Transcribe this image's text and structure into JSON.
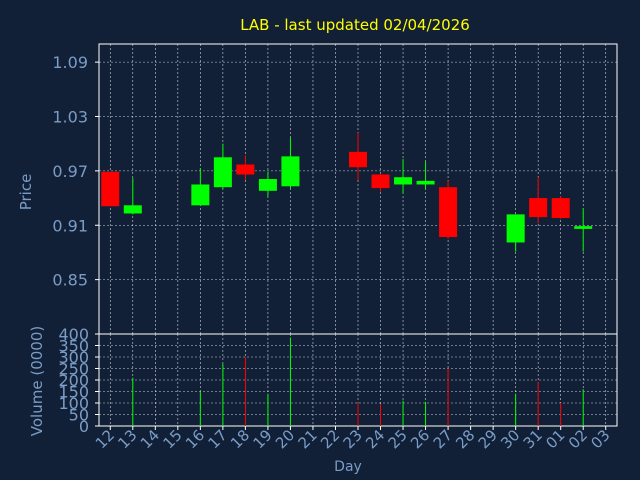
{
  "chart_data": {
    "type": "candlestick",
    "title": "LAB - last updated 02/04/2026",
    "xlabel": "Day",
    "price_panel": {
      "ylabel": "Price",
      "ylim": [
        0.79,
        1.11
      ],
      "yticks": [
        "0.85",
        "0.91",
        "0.97",
        "1.03",
        "1.09"
      ],
      "ytick_values": [
        0.85,
        0.91,
        0.97,
        1.03,
        1.09
      ],
      "grid": true
    },
    "volume_panel": {
      "ylabel": "Volume (0000)",
      "ylim": [
        0,
        400
      ],
      "yticks": [
        "0",
        "50",
        "100",
        "150",
        "200",
        "250",
        "300",
        "350",
        "400"
      ],
      "ytick_values": [
        0,
        50,
        100,
        150,
        200,
        250,
        300,
        350,
        400
      ],
      "grid": true
    },
    "x_ticks": [
      "12",
      "13",
      "14",
      "15",
      "16",
      "17",
      "18",
      "19",
      "20",
      "21",
      "22",
      "23",
      "24",
      "25",
      "26",
      "27",
      "28",
      "29",
      "30",
      "31",
      "01",
      "02",
      "03"
    ],
    "candles": [
      {
        "day": "12",
        "open": 0.969,
        "high": 0.969,
        "low": 0.931,
        "close": 0.931,
        "volume": 0
      },
      {
        "day": "13",
        "open": 0.923,
        "high": 0.962,
        "low": 0.922,
        "close": 0.932,
        "volume": 210
      },
      {
        "day": "16",
        "open": 0.932,
        "high": 0.973,
        "low": 0.932,
        "close": 0.955,
        "volume": 150
      },
      {
        "day": "17",
        "open": 0.952,
        "high": 1.0,
        "low": 0.95,
        "close": 0.985,
        "volume": 270
      },
      {
        "day": "18",
        "open": 0.977,
        "high": 0.987,
        "low": 0.96,
        "close": 0.966,
        "volume": 300
      },
      {
        "day": "19",
        "open": 0.948,
        "high": 0.969,
        "low": 0.942,
        "close": 0.961,
        "volume": 140
      },
      {
        "day": "20",
        "open": 0.953,
        "high": 1.007,
        "low": 0.951,
        "close": 0.986,
        "volume": 385
      },
      {
        "day": "23",
        "open": 0.991,
        "high": 1.012,
        "low": 0.96,
        "close": 0.974,
        "volume": 100
      },
      {
        "day": "24",
        "open": 0.966,
        "high": 0.967,
        "low": 0.947,
        "close": 0.951,
        "volume": 95
      },
      {
        "day": "25",
        "open": 0.955,
        "high": 0.983,
        "low": 0.945,
        "close": 0.963,
        "volume": 110
      },
      {
        "day": "26",
        "open": 0.955,
        "high": 0.98,
        "low": 0.95,
        "close": 0.959,
        "volume": 105
      },
      {
        "day": "27",
        "open": 0.952,
        "high": 0.959,
        "low": 0.895,
        "close": 0.897,
        "volume": 250
      },
      {
        "day": "30",
        "open": 0.891,
        "high": 0.922,
        "low": 0.881,
        "close": 0.922,
        "volume": 140
      },
      {
        "day": "31",
        "open": 0.94,
        "high": 0.963,
        "low": 0.912,
        "close": 0.919,
        "volume": 190
      },
      {
        "day": "01",
        "open": 0.94,
        "high": 0.942,
        "low": 0.917,
        "close": 0.918,
        "volume": 100
      },
      {
        "day": "02",
        "open": 0.906,
        "high": 0.929,
        "low": 0.881,
        "close": 0.909,
        "volume": 160
      }
    ],
    "colors": {
      "background": "#112036",
      "up": "#00FF00",
      "down": "#FF0000",
      "title": "#FFFF00",
      "axis_text": "#7A9CC6",
      "grid": "#FFFFFF"
    }
  }
}
